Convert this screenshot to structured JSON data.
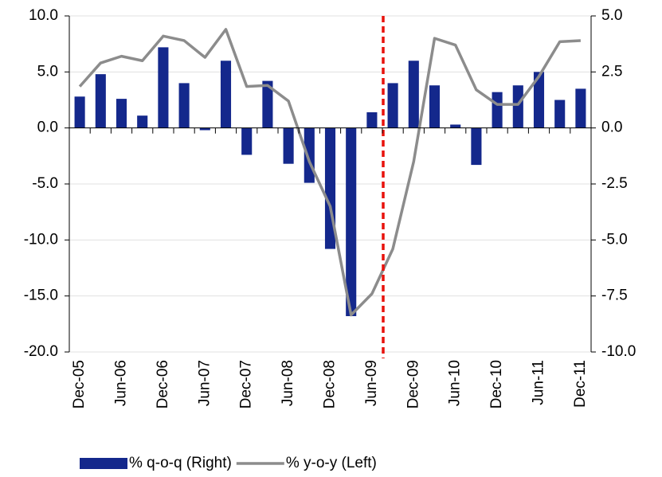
{
  "chart_data": {
    "type": "bar_line",
    "categories": [
      "Dec-05",
      null,
      "Jun-06",
      null,
      "Dec-06",
      null,
      "Jun-07",
      null,
      "Dec-07",
      null,
      "Jun-08",
      null,
      "Dec-08",
      null,
      "Jun-09",
      null,
      "Dec-09",
      null,
      "Jun-10",
      null,
      "Dec-10",
      null,
      "Jun-11",
      null,
      "Dec-11"
    ],
    "series": [
      {
        "name": "% q-o-q (Right)",
        "type": "bar",
        "axis": "y2",
        "color": "#14288c",
        "values": [
          1.4,
          2.4,
          1.3,
          0.55,
          3.6,
          2.0,
          -0.1,
          3.0,
          -1.2,
          2.1,
          -1.6,
          -2.45,
          -5.4,
          -8.4,
          0.7,
          2.0,
          3.0,
          1.9,
          0.15,
          -1.65,
          1.6,
          1.9,
          2.5,
          1.25,
          1.75
        ]
      },
      {
        "name": "% y-o-y (Left)",
        "type": "line",
        "color": "#8c8c8c",
        "values": [
          3.7,
          5.8,
          6.4,
          6.0,
          8.2,
          7.8,
          6.3,
          8.8,
          3.7,
          3.8,
          2.4,
          -3.0,
          -7.0,
          -16.7,
          -14.8,
          -10.8,
          -3.0,
          8.0,
          7.4,
          3.4,
          2.1,
          2.1,
          4.6,
          7.7,
          7.8
        ]
      }
    ],
    "ylim": [
      -20,
      10
    ],
    "yticks": [
      {
        "value": -20,
        "label": "-20.0"
      },
      {
        "value": -15,
        "label": "-15.0"
      },
      {
        "value": -10,
        "label": "-10.0"
      },
      {
        "value": -5,
        "label": "-5.0"
      },
      {
        "value": 0,
        "label": "0.0"
      },
      {
        "value": 5,
        "label": "5.0"
      },
      {
        "value": 10,
        "label": "10.0"
      }
    ],
    "y2lim": [
      -10,
      5
    ],
    "y2ticks": [
      {
        "value": -10,
        "label": "-10.0"
      },
      {
        "value": -7.5,
        "label": "-7.5"
      },
      {
        "value": -5,
        "label": "-5.0"
      },
      {
        "value": -2.5,
        "label": "-2.5"
      },
      {
        "value": 0,
        "label": "0.0"
      },
      {
        "value": 2.5,
        "label": "2.5"
      },
      {
        "value": 5,
        "label": "5.0"
      }
    ],
    "grid": true,
    "legend": "bottom"
  }
}
